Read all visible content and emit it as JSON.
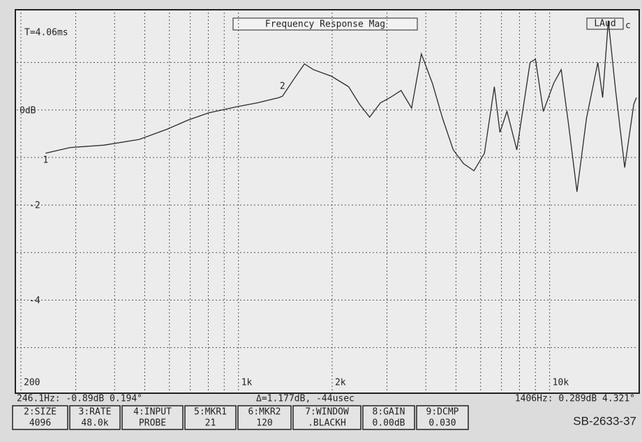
{
  "chart_data": {
    "type": "line",
    "title": "Frequency Response Mag",
    "subtitle": "T=4.06ms",
    "corner_label": "LAud",
    "corner_suffix": "c",
    "xscale": "log",
    "grid": true,
    "xlim": [
      200,
      19000
    ],
    "ylim": [
      -5.9,
      2.05
    ],
    "xticks": [
      {
        "value": 200,
        "label": "200"
      },
      {
        "value": 1000,
        "label": "1k"
      },
      {
        "value": 2000,
        "label": "2k"
      },
      {
        "value": 10000,
        "label": "10k"
      }
    ],
    "xminor_ticks": [
      300,
      400,
      500,
      600,
      700,
      800,
      900,
      3000,
      4000,
      5000,
      6000,
      7000,
      8000,
      9000
    ],
    "yticks": [
      {
        "value": 0,
        "label": "0dB"
      },
      -2,
      -4
    ],
    "yminor_ticks": [
      1,
      -1,
      -3,
      -5
    ],
    "series": [
      {
        "name": "Frequency Response Mag",
        "color": "#2a2a2a",
        "x": [
          240,
          288,
          370,
          480,
          592,
          690,
          802,
          990,
          1150,
          1350,
          1385,
          1500,
          1630,
          1740,
          1990,
          2260,
          2450,
          2640,
          2860,
          3070,
          3330,
          3600,
          3870,
          4200,
          4530,
          4900,
          5290,
          5710,
          6170,
          6640,
          6920,
          7290,
          7840,
          8650,
          9000,
          9540,
          10300,
          10890,
          11510,
          12240,
          13130,
          14280,
          14800,
          15430,
          16290,
          17420,
          18630,
          19000
        ],
        "values": [
          -0.91,
          -0.79,
          -0.74,
          -0.62,
          -0.4,
          -0.21,
          -0.06,
          0.07,
          0.15,
          0.26,
          0.29,
          0.63,
          0.97,
          0.85,
          0.71,
          0.49,
          0.12,
          -0.15,
          0.15,
          0.26,
          0.41,
          0.04,
          1.18,
          0.56,
          -0.18,
          -0.84,
          -1.13,
          -1.28,
          -0.91,
          0.49,
          -0.47,
          -0.03,
          -0.84,
          1.0,
          1.07,
          -0.03,
          0.56,
          0.85,
          -0.32,
          -1.72,
          -0.18,
          1.0,
          0.26,
          1.88,
          0.41,
          -1.21,
          0.12,
          0.26
        ]
      }
    ],
    "annotations": [
      {
        "text": "1",
        "x": 240,
        "y": -0.91
      },
      {
        "text": "2",
        "x": 1385,
        "y": 0.29
      }
    ],
    "status": {
      "left": "246.1Hz: -0.89dB  0.194°",
      "middle": "Δ=1.177dB,  -44usec",
      "right": "1406Hz: 0.289dB 4.321°"
    },
    "buttons": [
      {
        "label": "2:SIZE",
        "value": "4096"
      },
      {
        "label": "3:RATE",
        "value": "48.0k"
      },
      {
        "label": "4:INPUT",
        "value": "PROBE"
      },
      {
        "label": "5:MKR1",
        "value": "21"
      },
      {
        "label": "6:MKR2",
        "value": "120"
      },
      {
        "label": "7:WINDOW",
        "value": ".BLACKH"
      },
      {
        "label": "8:GAIN",
        "value": "0.00dB"
      },
      {
        "label": "9:DCMP",
        "value": "0.030"
      }
    ],
    "figure_id": "SB-2633-37"
  }
}
